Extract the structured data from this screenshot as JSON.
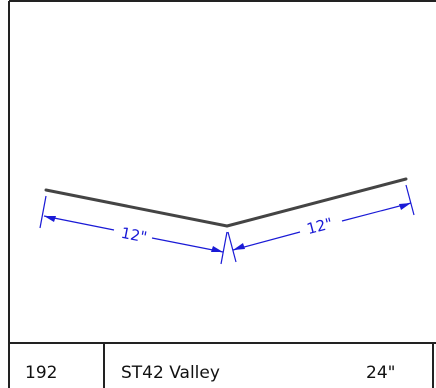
{
  "drawing": {
    "part_number": "192",
    "part_name": "ST42 Valley",
    "length": "24\"",
    "dimensions": {
      "left_leg": "12\"",
      "right_leg": "12\""
    }
  },
  "colors": {
    "frame": "#222222",
    "profile": "#444444",
    "dimension": "#1a1ad6",
    "background": "#ffffff"
  }
}
